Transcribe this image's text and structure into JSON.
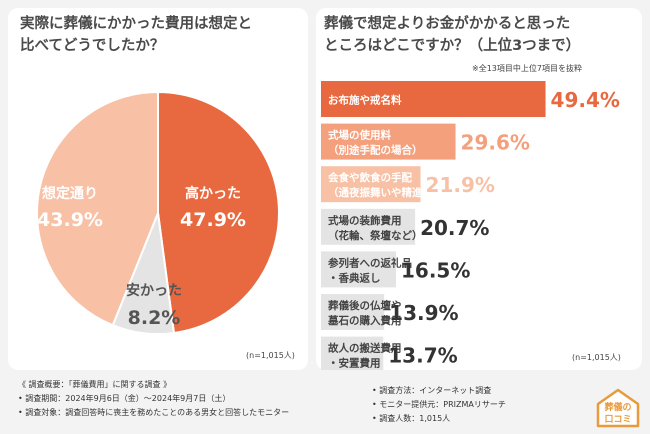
{
  "left_panel": {
    "title_line1": "実際に葬儀にかかった費用は想定と",
    "title_line2": "比べてどうでしたか？",
    "sample_note": "(n=1,015人)"
  },
  "right_panel": {
    "title_line1": "葬儀で想定よりお金がかかると思った",
    "title_line2": "ところはどこですか？（上位3つまで）",
    "subnote": "※全13項目中上位7項目を抜粋",
    "sample_note": "(n=1,015人)"
  },
  "footer": {
    "left": [
      "《 調査概要：「葬儀費用」に関する調査 》",
      "• 調査期間：2024年9月6日（金）～2024年9月7日（土）",
      "• 調査対象：調査回答時に喪主を務めたことのある男女と回答したモニター"
    ],
    "right": [
      "• 調査方法：インターネット調査",
      "• モニター提供元：PRIZMAリサーチ",
      "• 調査人数：1,015人"
    ]
  },
  "logo": {
    "line1": "葬儀の",
    "line2": "口コミ"
  },
  "colors": {
    "accent": "#e8693f",
    "mid": "#f5a07d",
    "light": "#f8c1a6",
    "gray": "#e4e4e4",
    "value_gray": "#333333"
  },
  "chart_data": [
    {
      "type": "pie",
      "slices": [
        {
          "label": "高かった",
          "value": 47.9,
          "value_label": "47.9%"
        },
        {
          "label": "安かった",
          "value": 8.2,
          "value_label": "8.2%"
        },
        {
          "label": "想定通り",
          "value": 43.9,
          "value_label": "43.9%"
        }
      ]
    },
    {
      "type": "bar",
      "orientation": "horizontal",
      "categories": [
        [
          "お布施や戒名料"
        ],
        [
          "式場の使用料",
          "（別途手配の場合）"
        ],
        [
          "会食や飲食の手配",
          "（通夜振舞いや精進落としなど）"
        ],
        [
          "式場の装飾費用",
          "（花輪、祭壇など）"
        ],
        [
          "参列者への返礼品",
          "・香典返し"
        ],
        [
          "葬儀後の仏壇や",
          "墓石の購入費用"
        ],
        [
          "故人の搬送費用",
          "・安置費用"
        ]
      ],
      "values": [
        49.4,
        29.6,
        21.9,
        20.7,
        16.5,
        13.9,
        13.7
      ],
      "value_labels": [
        "49.4%",
        "29.6%",
        "21.9%",
        "20.7%",
        "16.5%",
        "13.9%",
        "13.7%"
      ],
      "xlim": [
        0,
        55
      ]
    }
  ]
}
